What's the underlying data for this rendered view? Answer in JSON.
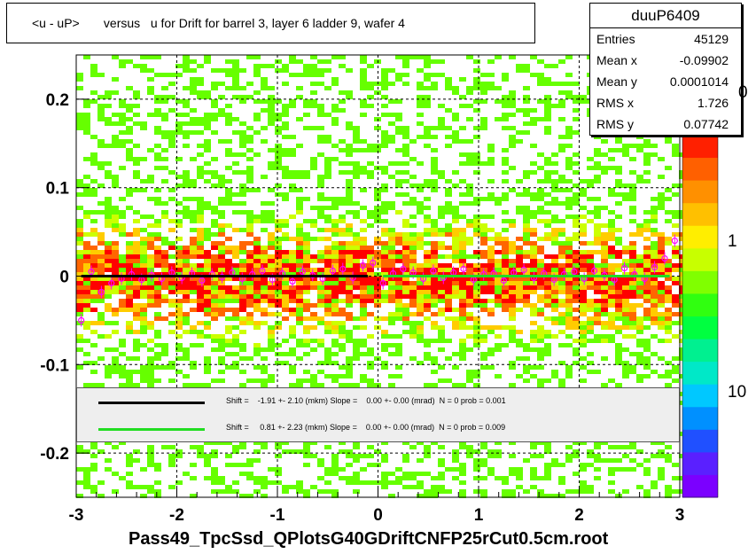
{
  "title": "<u - uP>       versus   u for Drift for barrel 3, layer 6 ladder 9, wafer 4",
  "stats": {
    "name": "duuP6409",
    "rows": [
      {
        "label": "Entries",
        "value": "45129"
      },
      {
        "label": "Mean x",
        "value": "-0.09902"
      },
      {
        "label": "Mean y",
        "value": "0.0001014"
      },
      {
        "label": "RMS x",
        "value": "1.726"
      },
      {
        "label": "RMS y",
        "value": "0.07742"
      }
    ]
  },
  "x_axis_title": "Pass49_TpcSsd_QPlotsG40GDriftCNFP25rCut0.5cm.root",
  "fits": [
    {
      "color": "#000000",
      "text": "Shift =    -1.91 +- 2.10 (mkm) Slope =    0.00 +- 0.00 (mrad)  N = 0 prob = 0.001"
    },
    {
      "color": "#22dd22",
      "text": "Shift =     0.81 +- 2.23 (mkm) Slope =    0.00 +- 0.00 (mrad)  N = 0 prob = 0.009"
    }
  ],
  "z_ticks": [
    "0",
    "1",
    "10"
  ],
  "chart_data": {
    "type": "heatmap",
    "xlim": [
      -3,
      3
    ],
    "ylim": [
      -0.25,
      0.25
    ],
    "x_ticks": [
      -3,
      -2,
      -1,
      0,
      1,
      2,
      3
    ],
    "y_ticks": [
      -0.2,
      -0.1,
      0,
      0.1,
      0.2
    ],
    "x_tick_labels": [
      "-3",
      "-2",
      "-1",
      "0",
      "1",
      "2",
      "3"
    ],
    "y_tick_labels": [
      "-0.2",
      "-0.1",
      "0",
      "0.1",
      "0.2"
    ],
    "grid": true,
    "colors": {
      "high": "#ff0000",
      "mid": "#ffcc00",
      "low": "#66ff00",
      "profile": "#ff00ff"
    },
    "profile_points": {
      "x": [
        -2.95,
        -2.85,
        -2.75,
        -2.65,
        -2.55,
        -2.45,
        -2.35,
        -2.25,
        -2.15,
        -2.05,
        -1.95,
        -1.85,
        -1.75,
        -1.65,
        -1.55,
        -1.45,
        -1.35,
        -1.25,
        -1.15,
        -1.05,
        -0.95,
        -0.85,
        -0.75,
        -0.65,
        -0.55,
        -0.45,
        -0.35,
        -0.25,
        -0.15,
        -0.05,
        0.05,
        0.15,
        0.25,
        0.35,
        0.45,
        0.55,
        0.65,
        0.75,
        0.85,
        0.95,
        1.05,
        1.15,
        1.25,
        1.35,
        1.45,
        1.55,
        1.65,
        1.75,
        1.85,
        1.95,
        2.05,
        2.15,
        2.25,
        2.35,
        2.45,
        2.55,
        2.65,
        2.75,
        2.85,
        2.95
      ],
      "y": [
        -0.05,
        0.005,
        -0.018,
        -0.008,
        -0.003,
        0.002,
        -0.004,
        0.001,
        -0.003,
        0.004,
        -0.002,
        0.003,
        -0.005,
        0.002,
        -0.001,
        0.004,
        -0.003,
        0.002,
        0.006,
        -0.004,
        0.003,
        -0.006,
        0.005,
        0.001,
        -0.003,
        0.006,
        0.008,
        -0.002,
        0.012,
        0.015,
        -0.008,
        0.003,
        0.008,
        0.004,
        -0.003,
        0.006,
        -0.002,
        0.004,
        0.008,
        -0.004,
        0.002,
        0.003,
        -0.005,
        0.004,
        0.007,
        -0.002,
        0.003,
        -0.004,
        0.002,
        0.005,
        -0.003,
        0.006,
        0.001,
        -0.004,
        0.009,
        0.002,
        -0.003,
        0.01,
        0.02,
        0.04
      ]
    },
    "fit_lines": [
      {
        "x": [
          -2.95,
          -0.1
        ],
        "y": [
          0.0,
          0.0
        ]
      },
      {
        "x": [
          0.05,
          2.9
        ],
        "y": [
          0.0,
          0.0
        ]
      }
    ]
  }
}
